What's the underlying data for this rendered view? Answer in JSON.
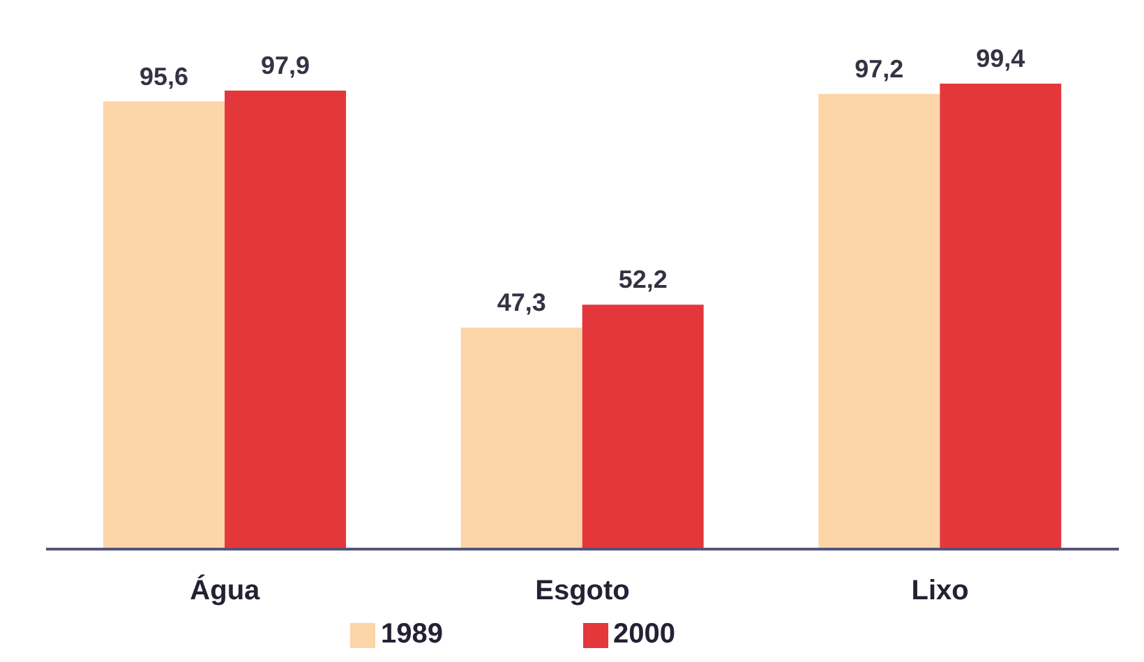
{
  "chart_data": {
    "type": "bar",
    "categories": [
      "Água",
      "Esgoto",
      "Lixo"
    ],
    "series": [
      {
        "name": "1989",
        "color": "#fcd5a8",
        "values": [
          95.6,
          47.3,
          97.2
        ],
        "value_labels": [
          "95,6",
          "47,3",
          "97,2"
        ]
      },
      {
        "name": "2000",
        "color": "#e4373c",
        "values": [
          97.9,
          52.2,
          99.4
        ],
        "value_labels": [
          "97,9",
          "52,2",
          "99,4"
        ]
      }
    ],
    "legend": "bottom",
    "grid": false
  }
}
